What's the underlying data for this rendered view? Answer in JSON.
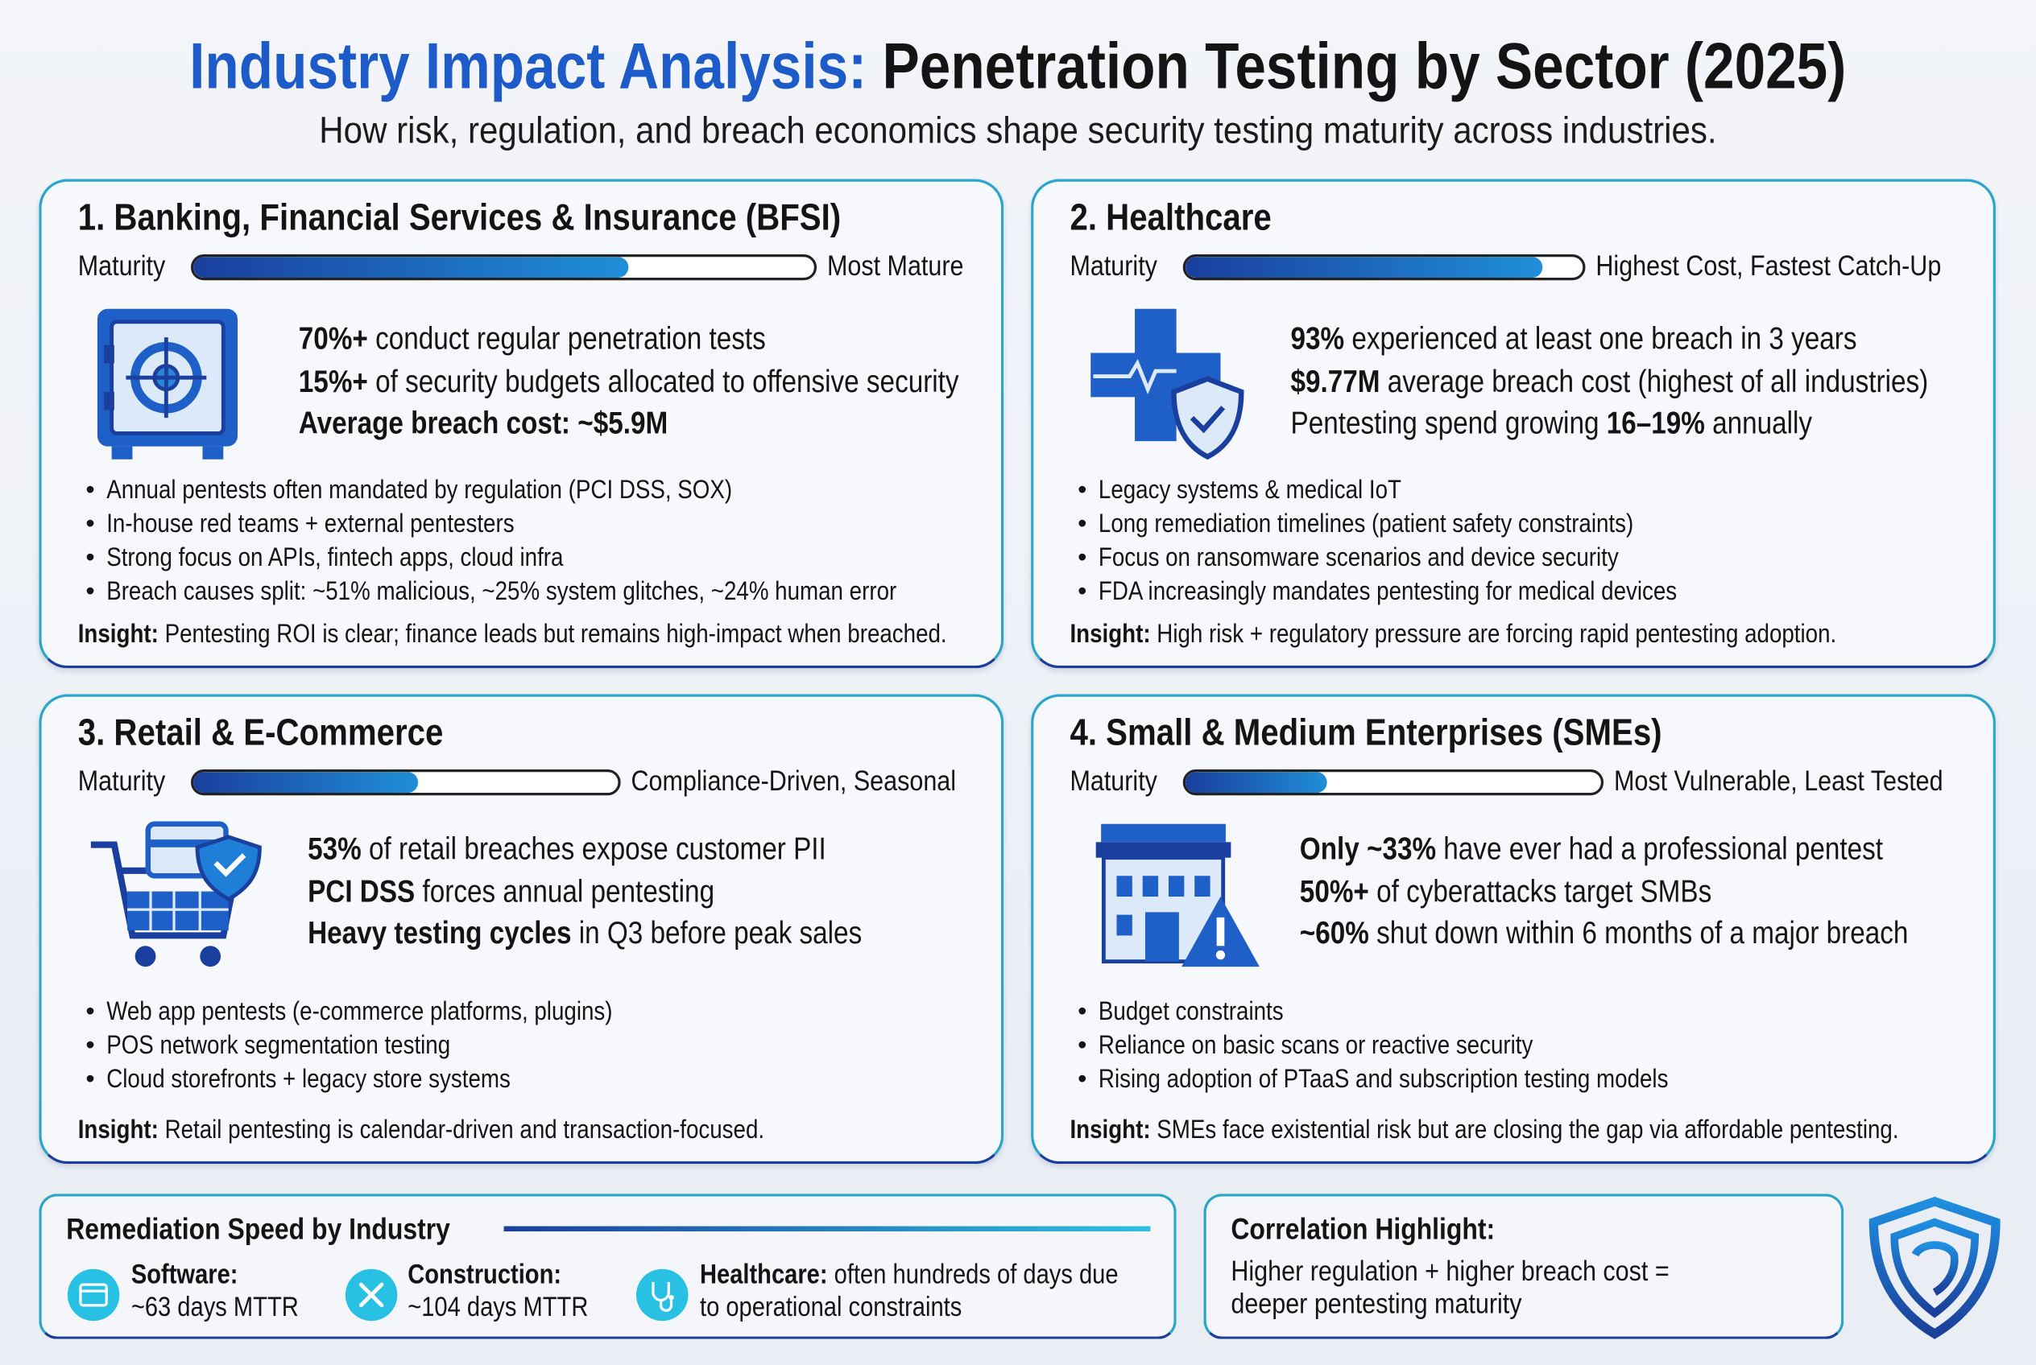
{
  "header": {
    "title_accent": "Industry Impact Analysis:",
    "title_rest": " Penetration Testing by Sector (2025)",
    "subtitle": "How risk, regulation, and breach economics shape security testing maturity across industries."
  },
  "colors": {
    "accent_blue": "#1d5cc8",
    "border_teal": "#2aa6c9",
    "border_navy": "#1b3f9a",
    "icon_cyan": "#28c1e3"
  },
  "sectors": [
    {
      "title": "1. Banking, Financial Services & Insurance (BFSI)",
      "maturity_label": "Maturity",
      "maturity_fraction": 0.7,
      "maturity_note": "Most Mature",
      "icon": "safe-icon",
      "stats": [
        {
          "bold": "70%+",
          "post": " conduct regular penetration tests"
        },
        {
          "bold": "15%+",
          "post": " of security budgets allocated to offensive security"
        },
        {
          "bold": "Average breach cost: ~$5.9M",
          "post": ""
        }
      ],
      "bullets": [
        "Annual pentests often mandated by regulation (PCI DSS, SOX)",
        "In-house red teams + external pentesters",
        "Strong focus on APIs, fintech apps, cloud infra",
        "Breach causes split: ~51% malicious, ~25% system glitches, ~24% human error"
      ],
      "insight_label": "Insight:",
      "insight": " Pentesting ROI is clear; finance leads but remains high-impact when breached."
    },
    {
      "title": "2. Healthcare",
      "maturity_label": "Maturity",
      "maturity_fraction": 0.9,
      "maturity_note": "Highest Cost, Fastest Catch-Up",
      "icon": "medical-cross-shield-icon",
      "stats": [
        {
          "pre": "",
          "bold": "93%",
          "post": " experienced at least one breach in 3 years"
        },
        {
          "pre": "",
          "bold": "$9.77M",
          "post": " average breach cost (highest of all industries)"
        },
        {
          "pre": "Pentesting spend growing ",
          "bold": "16–19%",
          "post": " annually"
        }
      ],
      "bullets": [
        "Legacy systems & medical IoT",
        "Long remediation timelines (patient safety constraints)",
        "Focus on ransomware scenarios and device security",
        "FDA increasingly mandates pentesting for medical devices"
      ],
      "insight_label": "Insight:",
      "insight": " High risk + regulatory pressure are forcing rapid pentesting adoption."
    },
    {
      "title": "3. Retail & E-Commerce",
      "maturity_label": "Maturity",
      "maturity_fraction": 0.53,
      "maturity_note": "Compliance-Driven, Seasonal",
      "icon": "shopping-cart-shield-icon",
      "stats": [
        {
          "bold": "53%",
          "post": " of retail breaches expose customer PII"
        },
        {
          "bold": "PCI DSS",
          "post": " forces annual pentesting"
        },
        {
          "bold": "Heavy testing cycles",
          "post": " in Q3 before peak sales"
        }
      ],
      "bullets": [
        "Web app pentests (e-commerce platforms, plugins)",
        "POS network segmentation testing",
        "Cloud storefronts + legacy store systems"
      ],
      "insight_label": "Insight:",
      "insight": " Retail pentesting is calendar-driven and transaction-focused."
    },
    {
      "title": "4. Small & Medium Enterprises (SMEs)",
      "maturity_label": "Maturity",
      "maturity_fraction": 0.34,
      "maturity_note": "Most Vulnerable, Least Tested",
      "icon": "building-warning-icon",
      "stats": [
        {
          "bold": "Only ~33%",
          "post": " have ever had a professional pentest"
        },
        {
          "bold": "50%+",
          "post": " of cyberattacks target SMBs"
        },
        {
          "bold": "~60%",
          "post": " shut down within 6 months of a major breach"
        }
      ],
      "bullets": [
        "Budget constraints",
        "Reliance on basic scans or reactive security",
        "Rising adoption of PTaaS and subscription testing models"
      ],
      "insight_label": "Insight:",
      "insight": " SMEs face existential risk but are closing the gap via affordable pentesting."
    }
  ],
  "remediation": {
    "title": "Remediation Speed by Industry",
    "items": [
      {
        "icon": "software-window-icon",
        "label": "Software:",
        "text": "~63 days MTTR"
      },
      {
        "icon": "tools-icon",
        "label": "Construction:",
        "text": "~104 days MTTR"
      },
      {
        "icon": "stethoscope-icon",
        "label": "Healthcare:",
        "text_inline": " often hundreds of days due",
        "text": "to operational constraints"
      }
    ]
  },
  "correlation": {
    "title": "Correlation Highlight:",
    "line1": "Higher regulation + higher breach cost =",
    "line2": "deeper pentesting maturity"
  },
  "logo": {
    "icon": "shield-logo-icon"
  }
}
